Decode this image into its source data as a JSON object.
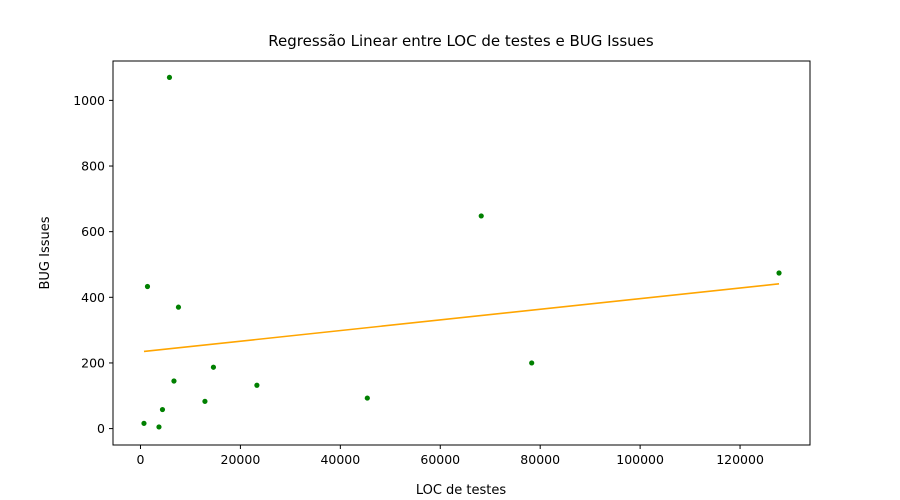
{
  "chart_data": {
    "type": "scatter",
    "title": "Regressão Linear entre LOC de testes e BUG Issues",
    "xlabel": "LOC de testes",
    "ylabel": "BUG Issues",
    "xlim": [
      -5500,
      134000
    ],
    "ylim": [
      -50,
      1120
    ],
    "x_ticks": [
      0,
      20000,
      40000,
      60000,
      80000,
      100000,
      120000
    ],
    "y_ticks": [
      0,
      200,
      400,
      600,
      800,
      1000
    ],
    "grid": false,
    "points": {
      "color": "#008000",
      "x": [
        700,
        1400,
        3700,
        4400,
        5800,
        6700,
        7600,
        12900,
        14600,
        23300,
        45400,
        68200,
        78300,
        127800
      ],
      "y": [
        16,
        433,
        5,
        58,
        1070,
        145,
        370,
        83,
        187,
        132,
        93,
        648,
        200,
        474
      ]
    },
    "regression_line": {
      "color": "#ffa500",
      "x": [
        700,
        127800
      ],
      "y": [
        235,
        441
      ]
    }
  }
}
